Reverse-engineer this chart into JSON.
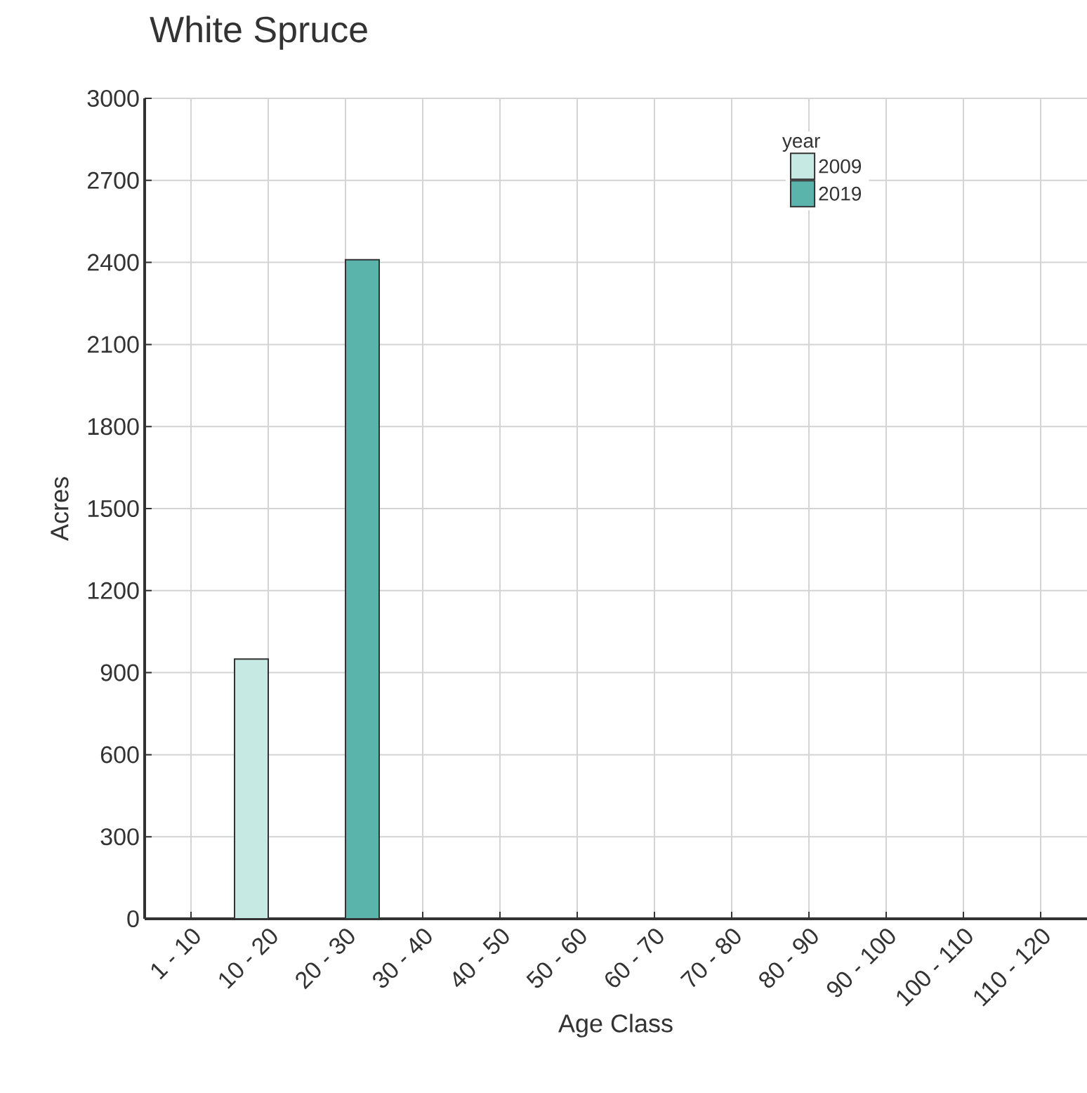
{
  "chart_data": {
    "type": "bar",
    "title": "White Spruce",
    "xlabel": "Age Class",
    "ylabel": "Acres",
    "legend_title": "year",
    "categories": [
      "1 - 10",
      "10 - 20",
      "20 - 30",
      "30 - 40",
      "40 - 50",
      "50 - 60",
      "60 - 70",
      "70 - 80",
      "80 - 90",
      "90 - 100",
      "100 - 110",
      "110 - 120"
    ],
    "series": [
      {
        "name": "2009",
        "color": "#c7e9e3",
        "values": [
          null,
          950,
          null,
          null,
          null,
          null,
          null,
          null,
          null,
          null,
          null,
          null
        ]
      },
      {
        "name": "2019",
        "color": "#5ab4ac",
        "values": [
          null,
          null,
          2410,
          null,
          null,
          null,
          null,
          null,
          null,
          null,
          null,
          null
        ]
      }
    ],
    "ylim": [
      0,
      3000
    ],
    "yticks": [
      0,
      300,
      600,
      900,
      1200,
      1500,
      1800,
      2100,
      2400,
      2700,
      3000
    ],
    "grid": true,
    "legend": "top right"
  }
}
